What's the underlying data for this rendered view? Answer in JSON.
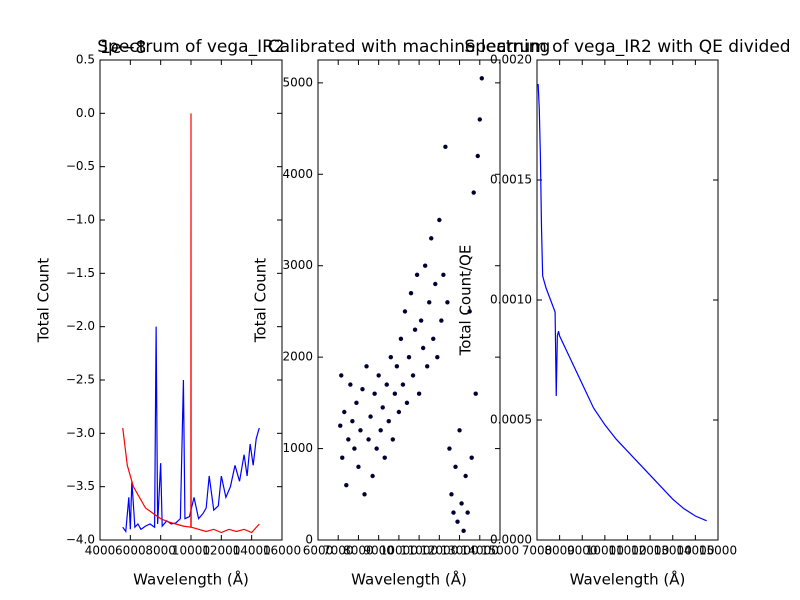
{
  "chart_data": [
    {
      "type": "line",
      "title": "Spectrum of vega_IR2",
      "offset_text": "1e−8",
      "xlabel": "Wavelength (Å)",
      "ylabel": "Total Count",
      "xlim": [
        4000,
        16000
      ],
      "xticks": [
        4000,
        6000,
        8000,
        10000,
        12000,
        14000,
        16000
      ],
      "ylim": [
        -4.0,
        0.5
      ],
      "yticks": [
        {
          "value": -4.0,
          "label": "−4.0"
        },
        {
          "value": -3.5,
          "label": "−3.5"
        },
        {
          "value": -3.0,
          "label": "−3.0"
        },
        {
          "value": -2.5,
          "label": "−2.5"
        },
        {
          "value": -2.0,
          "label": "−2.0"
        },
        {
          "value": -1.5,
          "label": "−1.5"
        },
        {
          "value": -1.0,
          "label": "−1.0"
        },
        {
          "value": -0.5,
          "label": "−0.5"
        },
        {
          "value": 0.0,
          "label": "0.0"
        },
        0.5
      ],
      "series": [
        {
          "color": "#0000ff",
          "x": [
            5500,
            5700,
            5900,
            6000,
            6100,
            6300,
            6500,
            6700,
            7000,
            7300,
            7600,
            7700,
            7800,
            8000,
            8100,
            8400,
            8700,
            9000,
            9300,
            9500,
            9600,
            9900,
            10200,
            10500,
            10800,
            11000,
            11200,
            11500,
            11800,
            12000,
            12300,
            12600,
            12900,
            13200,
            13500,
            13700,
            13900,
            14100,
            14300,
            14500
          ],
          "values": [
            -3.88,
            -3.92,
            -3.6,
            -3.9,
            -3.45,
            -3.88,
            -3.85,
            -3.9,
            -3.87,
            -3.85,
            -3.88,
            -2.0,
            -3.85,
            -3.28,
            -3.87,
            -3.82,
            -3.85,
            -3.84,
            -3.8,
            -2.5,
            -3.8,
            -3.78,
            -3.6,
            -3.8,
            -3.75,
            -3.7,
            -3.4,
            -3.72,
            -3.68,
            -3.4,
            -3.6,
            -3.5,
            -3.3,
            -3.45,
            -3.2,
            -3.4,
            -3.1,
            -3.3,
            -3.05,
            -2.95
          ]
        },
        {
          "color": "#ff0000",
          "x": [
            5500,
            5800,
            6200,
            6600,
            7000,
            7500,
            8000,
            8500,
            9000,
            9500,
            9990,
            10000,
            10010,
            10500,
            11000,
            11500,
            12000,
            12500,
            13000,
            13500,
            14000,
            14500
          ],
          "values": [
            -2.95,
            -3.3,
            -3.5,
            -3.6,
            -3.7,
            -3.75,
            -3.8,
            -3.83,
            -3.85,
            -3.87,
            -3.88,
            0.0,
            -3.88,
            -3.9,
            -3.92,
            -3.9,
            -3.93,
            -3.9,
            -3.92,
            -3.9,
            -3.93,
            -3.85
          ]
        }
      ]
    },
    {
      "type": "scatter",
      "title": "Calibrated with machine learning",
      "xlabel": "Wavelength (Å)",
      "ylabel": "Total Count",
      "xlim": [
        6000,
        15000
      ],
      "xticks": [
        6000,
        7000,
        8000,
        9000,
        10000,
        11000,
        12000,
        13000,
        14000,
        15000
      ],
      "ylim": [
        0,
        5250
      ],
      "yticks": [
        0,
        1000,
        2000,
        3000,
        4000,
        5000
      ],
      "series": [
        {
          "color": "#000033",
          "x": [
            7100,
            7150,
            7200,
            7300,
            7400,
            7500,
            7600,
            7700,
            7800,
            7900,
            8000,
            8100,
            8200,
            8300,
            8400,
            8500,
            8600,
            8700,
            8800,
            8900,
            9000,
            9100,
            9200,
            9300,
            9400,
            9500,
            9600,
            9700,
            9800,
            9900,
            10000,
            10100,
            10200,
            10300,
            10400,
            10500,
            10600,
            10700,
            10800,
            10900,
            11000,
            11100,
            11200,
            11300,
            11400,
            11500,
            11600,
            11700,
            11800,
            11900,
            12000,
            12100,
            12200,
            12300,
            12400,
            12500,
            12600,
            12700,
            12800,
            12900,
            13000,
            13100,
            13200,
            13300,
            13400,
            13500,
            13600,
            13700,
            13800,
            13900,
            14000,
            14100
          ],
          "values": [
            1250,
            1800,
            900,
            1400,
            600,
            1100,
            1700,
            1300,
            1000,
            1500,
            800,
            1200,
            1650,
            500,
            1900,
            1100,
            1350,
            700,
            1600,
            1000,
            1800,
            1200,
            1450,
            900,
            1700,
            1300,
            2000,
            1100,
            1600,
            1900,
            1400,
            2200,
            1700,
            2500,
            1500,
            2000,
            2700,
            1800,
            2300,
            2900,
            1600,
            2400,
            2100,
            3000,
            1900,
            2600,
            3300,
            2200,
            2800,
            2000,
            3500,
            2400,
            2900,
            4300,
            2600,
            1000,
            500,
            300,
            800,
            200,
            1200,
            400,
            100,
            700,
            300,
            2500,
            900,
            3800,
            1600,
            4200,
            4600,
            5050
          ]
        }
      ]
    },
    {
      "type": "line",
      "title": "Spectrum of vega_IR2 with QE divided",
      "xlabel": "Wavelength (Å)",
      "ylabel": "Total Count/QE",
      "xlim": [
        7000,
        15000
      ],
      "xticks": [
        7000,
        8000,
        9000,
        10000,
        11000,
        12000,
        13000,
        14000,
        15000
      ],
      "ylim": [
        0,
        0.002
      ],
      "yticks": [
        {
          "value": 0,
          "label": "0.0000"
        },
        {
          "value": 0.0005,
          "label": "0.0005"
        },
        {
          "value": 0.001,
          "label": "0.0010"
        },
        {
          "value": 0.0015,
          "label": "0.0015"
        },
        {
          "value": 0.002,
          "label": "0.0020"
        }
      ],
      "series": [
        {
          "color": "#0000ff",
          "x": [
            7050,
            7100,
            7150,
            7200,
            7250,
            7400,
            7600,
            7800,
            7850,
            7900,
            7950,
            8000,
            8500,
            9000,
            9500,
            10000,
            10500,
            11000,
            11500,
            12000,
            12500,
            13000,
            13500,
            14000,
            14500
          ],
          "values": [
            0.0019,
            0.0018,
            0.0016,
            0.0013,
            0.0011,
            0.00105,
            0.001,
            0.00095,
            0.0006,
            0.00085,
            0.00087,
            0.00085,
            0.00075,
            0.00065,
            0.00055,
            0.00048,
            0.00042,
            0.00037,
            0.00032,
            0.00027,
            0.00022,
            0.00017,
            0.00013,
            0.0001,
            8e-05
          ]
        }
      ]
    }
  ]
}
